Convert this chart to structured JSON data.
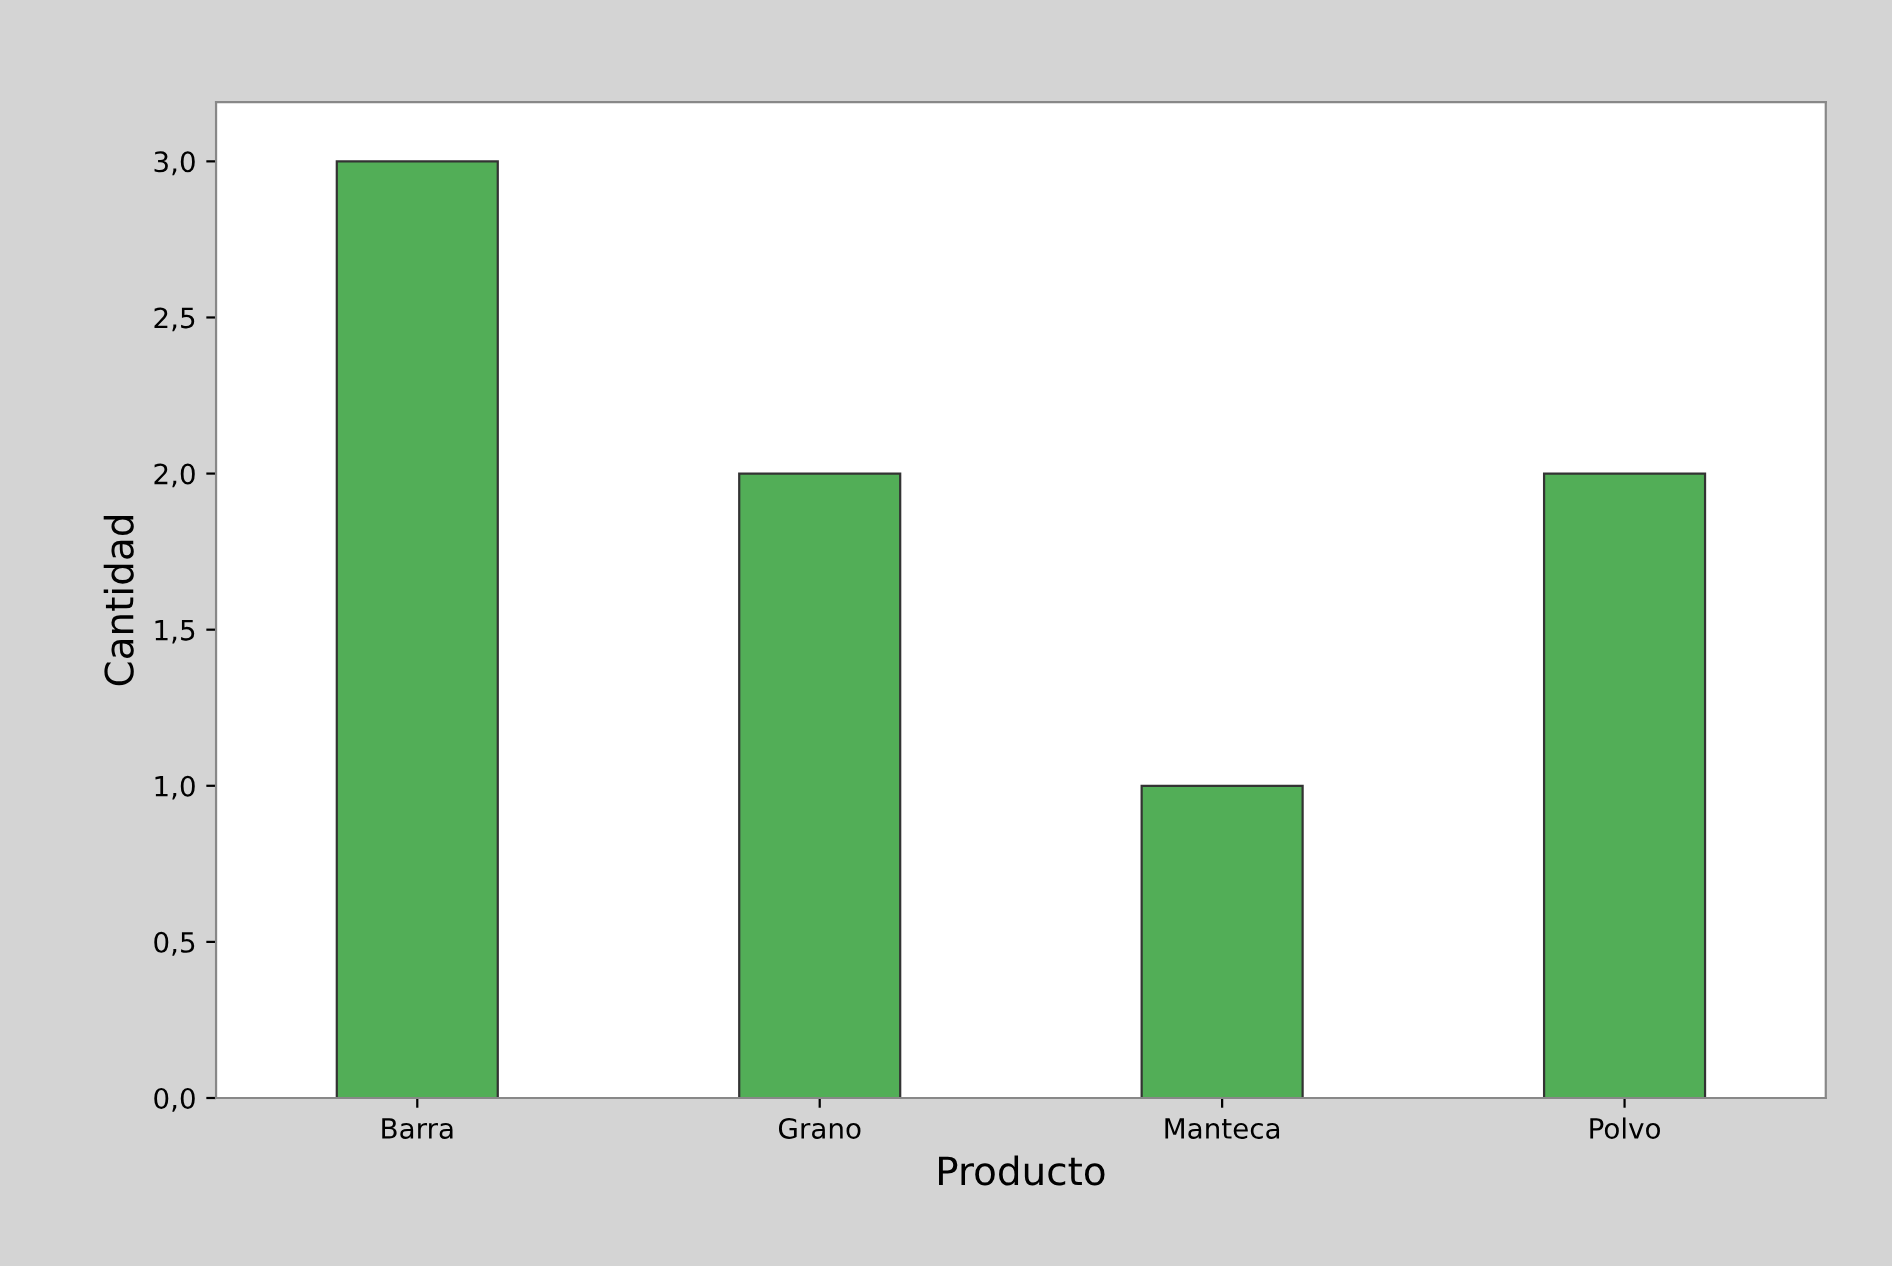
{
  "chart_data": {
    "type": "bar",
    "xlabel": "Producto",
    "ylabel": "Cantidad",
    "categories": [
      "Barra",
      "Grano",
      "Manteca",
      "Polvo"
    ],
    "values": [
      3,
      2,
      1,
      2
    ],
    "color": "#52ae57",
    "ylim": [
      0,
      3.19
    ],
    "yticks": [
      {
        "value": 0,
        "label": "0,0"
      },
      {
        "value": 0.5,
        "label": "0,5"
      },
      {
        "value": 1,
        "label": "1,0"
      },
      {
        "value": 1.5,
        "label": "1,5"
      },
      {
        "value": 2,
        "label": "2,0"
      },
      {
        "value": 2.5,
        "label": "2,5"
      },
      {
        "value": 3,
        "label": "3,0"
      }
    ],
    "grid": false,
    "legend": false
  }
}
